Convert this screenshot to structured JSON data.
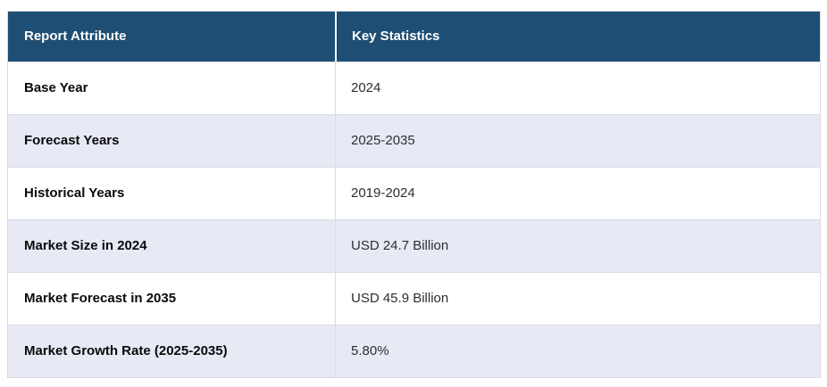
{
  "table": {
    "columns": [
      "Report Attribute",
      "Key Statistics"
    ],
    "rows": [
      {
        "attribute": "Base Year",
        "value": "2024"
      },
      {
        "attribute": "Forecast Years",
        "value": "2025-2035"
      },
      {
        "attribute": "Historical Years",
        "value": "2019-2024"
      },
      {
        "attribute": "Market Size in 2024",
        "value": "USD 24.7 Billion"
      },
      {
        "attribute": "Market Forecast in 2035",
        "value": "USD 45.9 Billion"
      },
      {
        "attribute": "Market Growth Rate (2025-2035)",
        "value": "5.80%"
      }
    ],
    "colors": {
      "header_background": "#1E4E73",
      "header_text": "#FFFFFF",
      "row_background": "#FFFFFF",
      "row_alt_background": "#E7E9F5",
      "border": "#D9DCE3",
      "attribute_text": "#0A0A0A",
      "value_text": "#2E2E2E"
    }
  }
}
